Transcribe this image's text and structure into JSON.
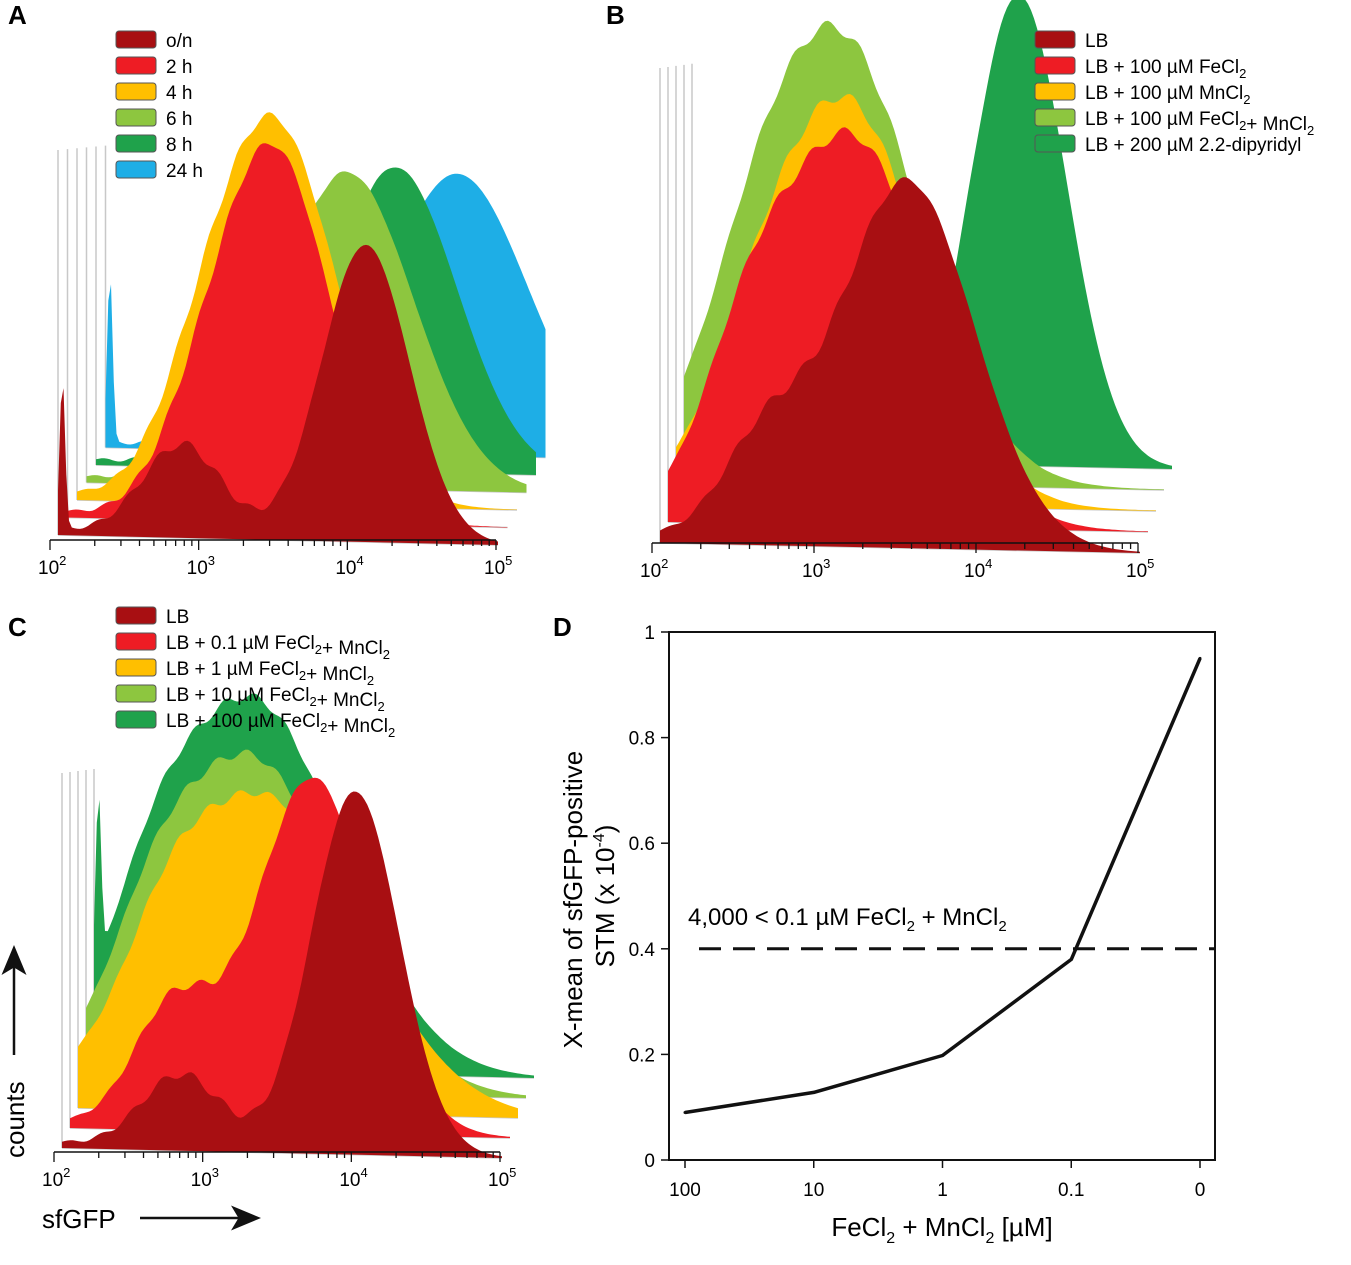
{
  "figure": {
    "panel_labels": [
      "A",
      "B",
      "C",
      "D"
    ]
  },
  "chart_data": [
    {
      "id": "A",
      "type": "area",
      "subtype": "offset-histogram-stack",
      "title": "",
      "xscale": "log",
      "xlim": [
        100,
        100000
      ],
      "xticks": [
        "10^2",
        "10^3",
        "10^4",
        "10^5"
      ],
      "xlabel": "",
      "ylabel": "",
      "series": [
        {
          "name": "24 h",
          "color": "#1EAEE6",
          "peak_x": 25000,
          "rel_height": 0.74,
          "sigma": 0.16,
          "shoulder_x": 800,
          "shoulder_h": 0.04,
          "spike": 0.45
        },
        {
          "name": "8 h",
          "color": "#1FA24B",
          "peak_x": 11000,
          "rel_height": 0.8,
          "sigma": 0.14,
          "shoulder_x": 850,
          "shoulder_h": 0.12,
          "spike": 0.0
        },
        {
          "name": "6 h",
          "color": "#8DC63F",
          "peak_x": 6000,
          "rel_height": 0.83,
          "sigma": 0.15,
          "shoulder_x": 700,
          "shoulder_h": 0.14,
          "spike": 0.0
        },
        {
          "name": "4 h",
          "color": "#FFBF00",
          "peak_x": 2200,
          "rel_height": 1.0,
          "sigma": 0.14,
          "shoulder_x": 650,
          "shoulder_h": 0.12,
          "spike": 0.0
        },
        {
          "name": "2 h",
          "color": "#EE1C24",
          "peak_x": 2500,
          "rel_height": 0.98,
          "sigma": 0.13,
          "shoulder_x": 700,
          "shoulder_h": 0.1,
          "spike": 0.0
        },
        {
          "name": "o/n",
          "color": "#A80F12",
          "peak_x": 12500,
          "rel_height": 0.78,
          "sigma": 0.1,
          "shoulder_x": 700,
          "shoulder_h": 0.24,
          "spike": 0.4
        }
      ]
    },
    {
      "id": "B",
      "type": "area",
      "subtype": "offset-histogram-stack",
      "title": "",
      "xscale": "log",
      "xlim": [
        100,
        100000
      ],
      "xticks": [
        "10^2",
        "10^3",
        "10^4",
        "10^5"
      ],
      "xlabel": "",
      "ylabel": "",
      "series": [
        {
          "name": "LB + 200 µM 2.2-dipyridyl",
          "color": "#1FA24B",
          "peak_x": 11000,
          "rel_height": 1.0,
          "sigma": 0.1,
          "shoulder_x": 0,
          "shoulder_h": 0.0,
          "spike": 0.2
        },
        {
          "name": "LB + 100 µM FeCl2+ MnCl2",
          "color": "#8DC63F",
          "peak_x": 900,
          "rel_height": 0.95,
          "sigma": 0.17,
          "shoulder_x": 250,
          "shoulder_h": 0.12,
          "spike": 0.0
        },
        {
          "name": "LB + 100 µM MnCl2",
          "color": "#FFBF00",
          "peak_x": 1150,
          "rel_height": 0.85,
          "sigma": 0.16,
          "shoulder_x": 300,
          "shoulder_h": 0.12,
          "spike": 0.0
        },
        {
          "name": "LB + 100 µM FeCl2",
          "color": "#EE1C24",
          "peak_x": 1400,
          "rel_height": 0.82,
          "sigma": 0.16,
          "shoulder_x": 300,
          "shoulder_h": 0.22,
          "spike": 0.0
        },
        {
          "name": "LB",
          "color": "#A80F12",
          "peak_x": 3500,
          "rel_height": 0.78,
          "sigma": 0.14,
          "shoulder_x": 450,
          "shoulder_h": 0.2,
          "spike": 0.0
        }
      ]
    },
    {
      "id": "C",
      "type": "area",
      "subtype": "offset-histogram-stack",
      "title": "",
      "xscale": "log",
      "xlim": [
        100,
        100000
      ],
      "xticks": [
        "10^2",
        "10^3",
        "10^4",
        "10^5"
      ],
      "xlabel": "sfGFP",
      "ylabel": "counts",
      "series": [
        {
          "name": "LB + 100 µM FeCl2+ MnCl2",
          "color": "#1FA24B",
          "peak_x": 1200,
          "rel_height": 1.0,
          "sigma": 0.2,
          "shoulder_x": 250,
          "shoulder_h": 0.18,
          "spike": 0.45
        },
        {
          "name": "LB + 10 µM FeCl2+ MnCl2",
          "color": "#8DC63F",
          "peak_x": 1300,
          "rel_height": 0.9,
          "sigma": 0.2,
          "shoulder_x": 280,
          "shoulder_h": 0.16,
          "spike": 0.0
        },
        {
          "name": "LB + 1 µM FeCl2+ MnCl2",
          "color": "#FFBF00",
          "peak_x": 1800,
          "rel_height": 0.85,
          "sigma": 0.22,
          "shoulder_x": 400,
          "shoulder_h": 0.14,
          "spike": 0.0
        },
        {
          "name": "LB + 0.1 µM FeCl2+ MnCl2",
          "color": "#EE1C24",
          "peak_x": 4500,
          "rel_height": 0.96,
          "sigma": 0.13,
          "shoulder_x": 500,
          "shoulder_h": 0.32,
          "spike": 0.0
        },
        {
          "name": "LB",
          "color": "#A80F12",
          "peak_x": 10000,
          "rel_height": 0.98,
          "sigma": 0.1,
          "shoulder_x": 650,
          "shoulder_h": 0.2,
          "spike": 0.0
        }
      ]
    },
    {
      "id": "D",
      "type": "line",
      "title": "",
      "xlabel": "FeCl2 + MnCl2 [µM]",
      "ylabel_lines": [
        "X-mean of sfGFP-positive",
        "STM (x 10-4)"
      ],
      "categories": [
        "100",
        "10",
        "1",
        "0.1",
        "0"
      ],
      "values": [
        0.09,
        0.128,
        0.198,
        0.38,
        0.95
      ],
      "ylim": [
        0,
        1
      ],
      "yticks": [
        "0",
        "0.2",
        "0.4",
        "0.6",
        "0.8",
        "1"
      ],
      "threshold": {
        "value": 0.4,
        "label": "4,000 < 0.1 µM FeCl2 + MnCl2",
        "style": "dashed"
      }
    }
  ]
}
